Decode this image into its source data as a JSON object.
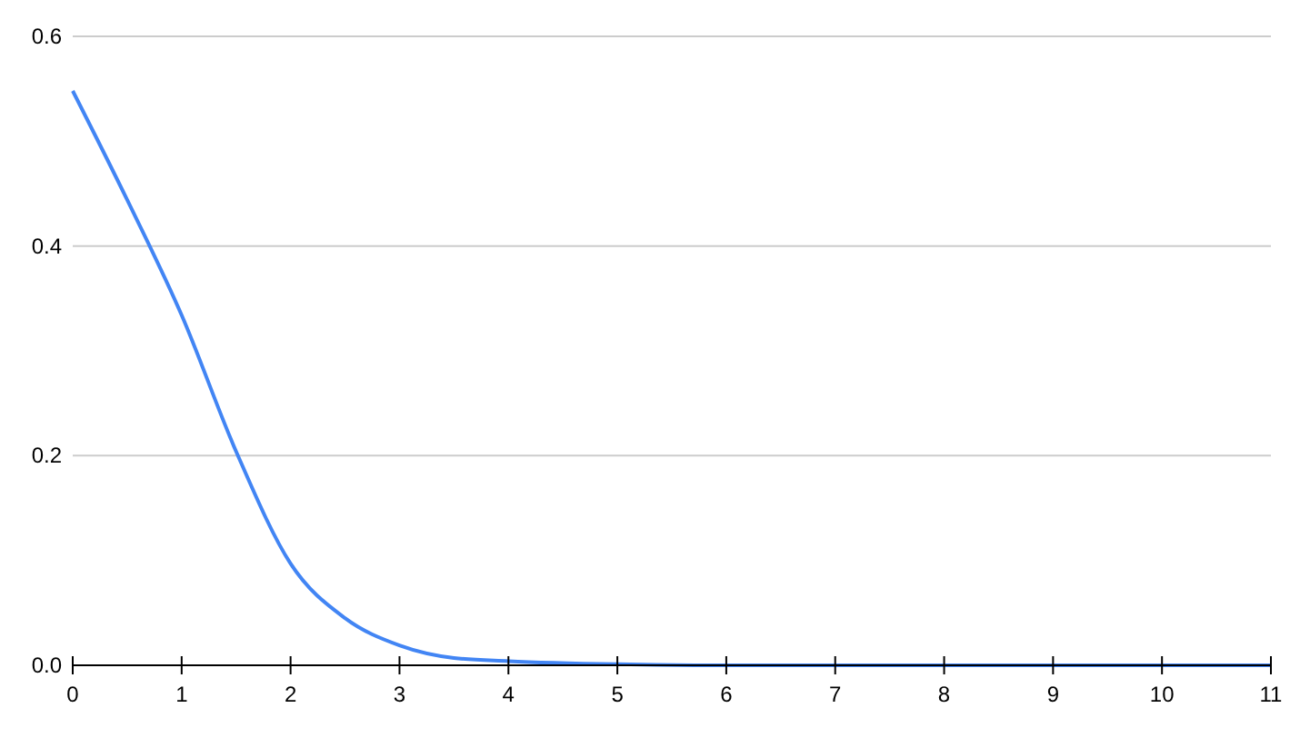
{
  "chart_data": {
    "type": "line",
    "x": [
      0,
      0.5,
      1,
      1.5,
      2,
      2.5,
      3,
      3.5,
      4,
      5,
      6,
      7,
      8,
      9,
      10,
      11
    ],
    "series": [
      {
        "color": "#4285f4",
        "values": [
          0.548,
          0.444,
          0.334,
          0.204,
          0.097,
          0.045,
          0.019,
          0.007,
          0.004,
          0.001,
          0,
          0,
          0,
          0,
          0,
          0
        ]
      }
    ],
    "xlim": [
      0,
      11
    ],
    "xticks": [
      0,
      1,
      2,
      3,
      4,
      5,
      6,
      7,
      8,
      9,
      10,
      11
    ],
    "ylim": [
      0,
      0.6
    ],
    "yticks": [
      {
        "value": 0,
        "label": "0.0"
      },
      {
        "value": 0.2,
        "label": "0.2"
      },
      {
        "value": 0.4,
        "label": "0.4"
      },
      {
        "value": 0.6,
        "label": "0.6"
      }
    ],
    "grid": "y"
  }
}
